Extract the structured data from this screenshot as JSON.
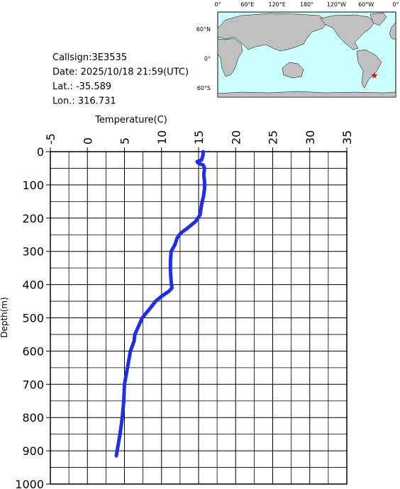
{
  "chart_data": {
    "type": "profile",
    "annotations": [
      "Callsign:3E3535",
      "Date:  2025/10/18 21:59(UTC)",
      "Lat.:  -35.589",
      "Lon.:  316.731"
    ],
    "map": {
      "lon_labels": [
        "0°",
        "60°E",
        "120°E",
        "180°",
        "120°W",
        "60°W",
        "0°"
      ],
      "lat_labels": [
        "60°N",
        "0°",
        "60°S"
      ],
      "marker": {
        "lat": -35.589,
        "lon": 316.731,
        "color": "#ff0000"
      }
    },
    "xlabel": "Temperature(C)",
    "ylabel": "Depth(m)",
    "xlim": [
      -5,
      35
    ],
    "xticks": [
      -5,
      0,
      5,
      10,
      15,
      20,
      25,
      30,
      35
    ],
    "ylim": [
      0,
      1000
    ],
    "yticks": [
      0,
      100,
      200,
      300,
      400,
      500,
      600,
      700,
      800,
      900,
      1000
    ],
    "grid": true,
    "color": "#1f2ee8",
    "depth": [
      0,
      10,
      25,
      30,
      35,
      40,
      50,
      70,
      90,
      110,
      130,
      160,
      190,
      210,
      230,
      245,
      260,
      280,
      300,
      330,
      360,
      390,
      410,
      420,
      435,
      450,
      470,
      500,
      520,
      550,
      570,
      600,
      650,
      700,
      750,
      800,
      850,
      900,
      915
    ],
    "temperature": [
      15.6,
      15.6,
      15.4,
      14.8,
      15.0,
      15.6,
      15.8,
      15.7,
      15.8,
      15.8,
      15.7,
      15.4,
      15.2,
      14.6,
      13.5,
      12.6,
      12.1,
      11.8,
      11.3,
      11.2,
      11.2,
      11.3,
      11.4,
      11.0,
      10.0,
      9.2,
      8.5,
      7.4,
      7.0,
      6.4,
      6.3,
      5.8,
      5.4,
      5.0,
      4.9,
      4.7,
      4.4,
      4.0,
      3.9
    ]
  }
}
